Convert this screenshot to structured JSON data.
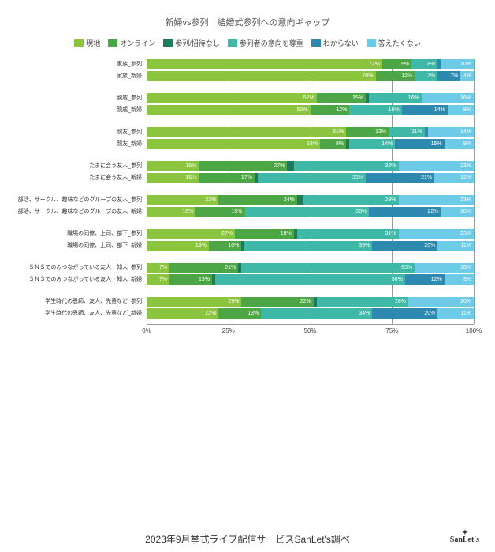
{
  "title": "新婦vs参列　結婚式参列への意向ギャップ",
  "footer": "2023年9月挙式ライブ配信サービスSanLet's調べ",
  "logo": "SanLet's",
  "legend": [
    {
      "label": "現地",
      "color": "#8bc53f"
    },
    {
      "label": "オンライン",
      "color": "#4ca645"
    },
    {
      "label": "参列/招待なし",
      "color": "#1f7a5a"
    },
    {
      "label": "参列者の意向を尊重",
      "color": "#3fb8a8"
    },
    {
      "label": "わからない",
      "color": "#2e89b0"
    },
    {
      "label": "答えたくない",
      "color": "#6dcbe8"
    }
  ],
  "axis": {
    "ticks": [
      "0%",
      "25%",
      "50%",
      "75%",
      "100%"
    ],
    "positions": [
      0,
      25,
      50,
      75,
      100
    ]
  },
  "groups": [
    {
      "rows": [
        {
          "label": "家族_参列",
          "segs": [
            {
              "v": 72,
              "c": 0,
              "t": "72%"
            },
            {
              "v": 9,
              "c": 1,
              "t": "9%"
            },
            {
              "v": 8,
              "c": 3,
              "t": "8%"
            },
            {
              "v": 1,
              "c": 4,
              "t": ""
            },
            {
              "v": 10,
              "c": 5,
              "t": "10%"
            }
          ]
        },
        {
          "label": "家族_新婦",
          "segs": [
            {
              "v": 70,
              "c": 0,
              "t": "70%"
            },
            {
              "v": 12,
              "c": 1,
              "t": "12%"
            },
            {
              "v": 7,
              "c": 3,
              "t": "7%"
            },
            {
              "v": 7,
              "c": 4,
              "t": "7%"
            },
            {
              "v": 4,
              "c": 5,
              "t": "4%"
            }
          ]
        }
      ]
    },
    {
      "rows": [
        {
          "label": "親戚_参列",
          "segs": [
            {
              "v": 52,
              "c": 0,
              "t": "52%"
            },
            {
              "v": 15,
              "c": 1,
              "t": "15%"
            },
            {
              "v": 1,
              "c": 2,
              "t": ""
            },
            {
              "v": 16,
              "c": 3,
              "t": "16%"
            },
            {
              "v": 16,
              "c": 5,
              "t": "16%"
            }
          ]
        },
        {
          "label": "親戚_新婦",
          "segs": [
            {
              "v": 50,
              "c": 0,
              "t": "50%"
            },
            {
              "v": 12,
              "c": 1,
              "t": "12%"
            },
            {
              "v": 16,
              "c": 3,
              "t": "16%"
            },
            {
              "v": 14,
              "c": 4,
              "t": "14%"
            },
            {
              "v": 8,
              "c": 5,
              "t": "8%"
            }
          ]
        }
      ]
    },
    {
      "rows": [
        {
          "label": "親友_参列",
          "segs": [
            {
              "v": 61,
              "c": 0,
              "t": "61%"
            },
            {
              "v": 13,
              "c": 1,
              "t": "13%"
            },
            {
              "v": 11,
              "c": 3,
              "t": "11%"
            },
            {
              "v": 1,
              "c": 4,
              "t": ""
            },
            {
              "v": 14,
              "c": 5,
              "t": "14%"
            }
          ]
        },
        {
          "label": "親友_新婦",
          "segs": [
            {
              "v": 53,
              "c": 0,
              "t": "53%"
            },
            {
              "v": 8,
              "c": 1,
              "t": "8%"
            },
            {
              "v": 1,
              "c": 2,
              "t": ""
            },
            {
              "v": 14,
              "c": 3,
              "t": "14%"
            },
            {
              "v": 15,
              "c": 4,
              "t": "15%"
            },
            {
              "v": 9,
              "c": 5,
              "t": "9%"
            }
          ]
        }
      ]
    },
    {
      "rows": [
        {
          "label": "たまに会う友人_参列",
          "segs": [
            {
              "v": 16,
              "c": 0,
              "t": "16%"
            },
            {
              "v": 27,
              "c": 1,
              "t": "27%"
            },
            {
              "v": 2,
              "c": 2,
              "t": ""
            },
            {
              "v": 32,
              "c": 3,
              "t": "32%"
            },
            {
              "v": 23,
              "c": 5,
              "t": "23%"
            }
          ]
        },
        {
          "label": "たまに会う友人_新婦",
          "segs": [
            {
              "v": 16,
              "c": 0,
              "t": "16%"
            },
            {
              "v": 17,
              "c": 1,
              "t": "17%"
            },
            {
              "v": 1,
              "c": 2,
              "t": ""
            },
            {
              "v": 33,
              "c": 3,
              "t": "33%"
            },
            {
              "v": 21,
              "c": 4,
              "t": "21%"
            },
            {
              "v": 12,
              "c": 5,
              "t": "12%"
            }
          ]
        }
      ]
    },
    {
      "rows": [
        {
          "label": "部活、サークル、趣味などのグループの友人_参列",
          "segs": [
            {
              "v": 22,
              "c": 0,
              "t": "22%"
            },
            {
              "v": 24,
              "c": 1,
              "t": "24%"
            },
            {
              "v": 2,
              "c": 2,
              "t": ""
            },
            {
              "v": 29,
              "c": 3,
              "t": "29%"
            },
            {
              "v": 23,
              "c": 5,
              "t": "23%"
            }
          ]
        },
        {
          "label": "部活、サークル、趣味などのグループの友人_新婦",
          "segs": [
            {
              "v": 15,
              "c": 0,
              "t": "15%"
            },
            {
              "v": 15,
              "c": 1,
              "t": "15%"
            },
            {
              "v": 38,
              "c": 3,
              "t": "38%"
            },
            {
              "v": 22,
              "c": 4,
              "t": "22%"
            },
            {
              "v": 10,
              "c": 5,
              "t": "10%"
            }
          ]
        }
      ]
    },
    {
      "rows": [
        {
          "label": "職場の同僚、上司、部下_参列",
          "segs": [
            {
              "v": 27,
              "c": 0,
              "t": "27%"
            },
            {
              "v": 18,
              "c": 1,
              "t": "18%"
            },
            {
              "v": 1,
              "c": 2,
              "t": ""
            },
            {
              "v": 31,
              "c": 3,
              "t": "31%"
            },
            {
              "v": 23,
              "c": 5,
              "t": "23%"
            }
          ]
        },
        {
          "label": "職場の同僚、上司、部下_新婦",
          "segs": [
            {
              "v": 19,
              "c": 0,
              "t": "19%"
            },
            {
              "v": 10,
              "c": 1,
              "t": "10%"
            },
            {
              "v": 1,
              "c": 2,
              "t": ""
            },
            {
              "v": 39,
              "c": 3,
              "t": "39%"
            },
            {
              "v": 20,
              "c": 4,
              "t": "20%"
            },
            {
              "v": 11,
              "c": 5,
              "t": "11%"
            }
          ]
        }
      ]
    },
    {
      "rows": [
        {
          "label": "ＳＮＳでのみつながっている友人・知人_参列",
          "segs": [
            {
              "v": 7,
              "c": 0,
              "t": "7%"
            },
            {
              "v": 21,
              "c": 1,
              "t": "21%"
            },
            {
              "v": 1,
              "c": 2,
              "t": ""
            },
            {
              "v": 53,
              "c": 3,
              "t": "53%"
            },
            {
              "v": 18,
              "c": 5,
              "t": "18%"
            }
          ]
        },
        {
          "label": "ＳＮＳでのみつながっている友人・知人_新婦",
          "segs": [
            {
              "v": 7,
              "c": 0,
              "t": "7%"
            },
            {
              "v": 13,
              "c": 1,
              "t": "13%"
            },
            {
              "v": 1,
              "c": 2,
              "t": ""
            },
            {
              "v": 58,
              "c": 3,
              "t": "58%"
            },
            {
              "v": 12,
              "c": 4,
              "t": "12%"
            },
            {
              "v": 9,
              "c": 5,
              "t": "9%"
            }
          ]
        }
      ]
    },
    {
      "rows": [
        {
          "label": "学生時代の恩師、友人、先輩など_参列",
          "segs": [
            {
              "v": 29,
              "c": 0,
              "t": "29%"
            },
            {
              "v": 22,
              "c": 1,
              "t": "22%"
            },
            {
              "v": 1,
              "c": 2,
              "t": ""
            },
            {
              "v": 28,
              "c": 3,
              "t": "28%"
            },
            {
              "v": 20,
              "c": 5,
              "t": "20%"
            }
          ]
        },
        {
          "label": "学生時代の恩師、友人、先輩など_新婦",
          "segs": [
            {
              "v": 22,
              "c": 0,
              "t": "22%"
            },
            {
              "v": 13,
              "c": 1,
              "t": "13%"
            },
            {
              "v": 34,
              "c": 3,
              "t": "34%"
            },
            {
              "v": 20,
              "c": 4,
              "t": "20%"
            },
            {
              "v": 11,
              "c": 5,
              "t": "11%"
            }
          ]
        }
      ]
    }
  ]
}
